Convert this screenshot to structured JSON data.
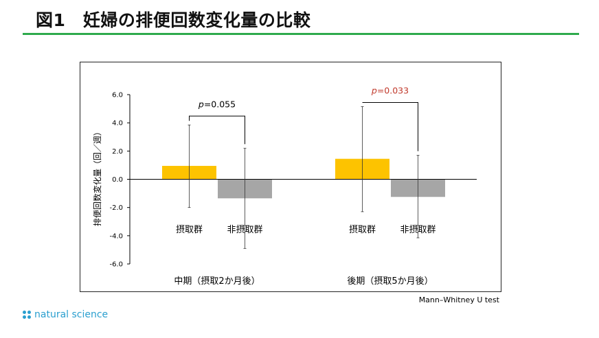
{
  "page": {
    "title": "図1　妊婦の排便回数変化量の比較",
    "footnote": "Mann–Whitney U test",
    "brand": "natural science",
    "brand_color": "#2a9fcf",
    "accent_color": "#2eaa4c"
  },
  "chart_data": {
    "type": "bar",
    "ylabel": "排便回数変化量（回／週）",
    "ylim": [
      -6.0,
      6.0
    ],
    "yticks": [
      6.0,
      4.0,
      2.0,
      0.0,
      -2.0,
      -4.0,
      -6.0
    ],
    "ytick_labels": [
      "6.0",
      "4.0",
      "2.0",
      "0.0",
      "-2.0",
      "-4.0",
      "-6.0"
    ],
    "grid": false,
    "groups": [
      {
        "label": "中期（摂取2か月後）",
        "bars": [
          {
            "label": "摂取群",
            "value": 0.95,
            "err_low": -2.0,
            "err_high": 3.85,
            "color": "#fdc300"
          },
          {
            "label": "非摂取群",
            "value": -1.35,
            "err_low": -4.9,
            "err_high": 2.2,
            "color": "#a6a6a6"
          }
        ],
        "p_text": "=0.055",
        "p_color": "#000000"
      },
      {
        "label": "後期（摂取5か月後）",
        "bars": [
          {
            "label": "摂取群",
            "value": 1.45,
            "err_low": -2.3,
            "err_high": 5.15,
            "color": "#fdc300"
          },
          {
            "label": "非摂取群",
            "value": -1.25,
            "err_low": -4.15,
            "err_high": 1.7,
            "color": "#a6a6a6"
          }
        ],
        "p_text": "=0.033",
        "p_color": "#c0392b"
      }
    ]
  }
}
